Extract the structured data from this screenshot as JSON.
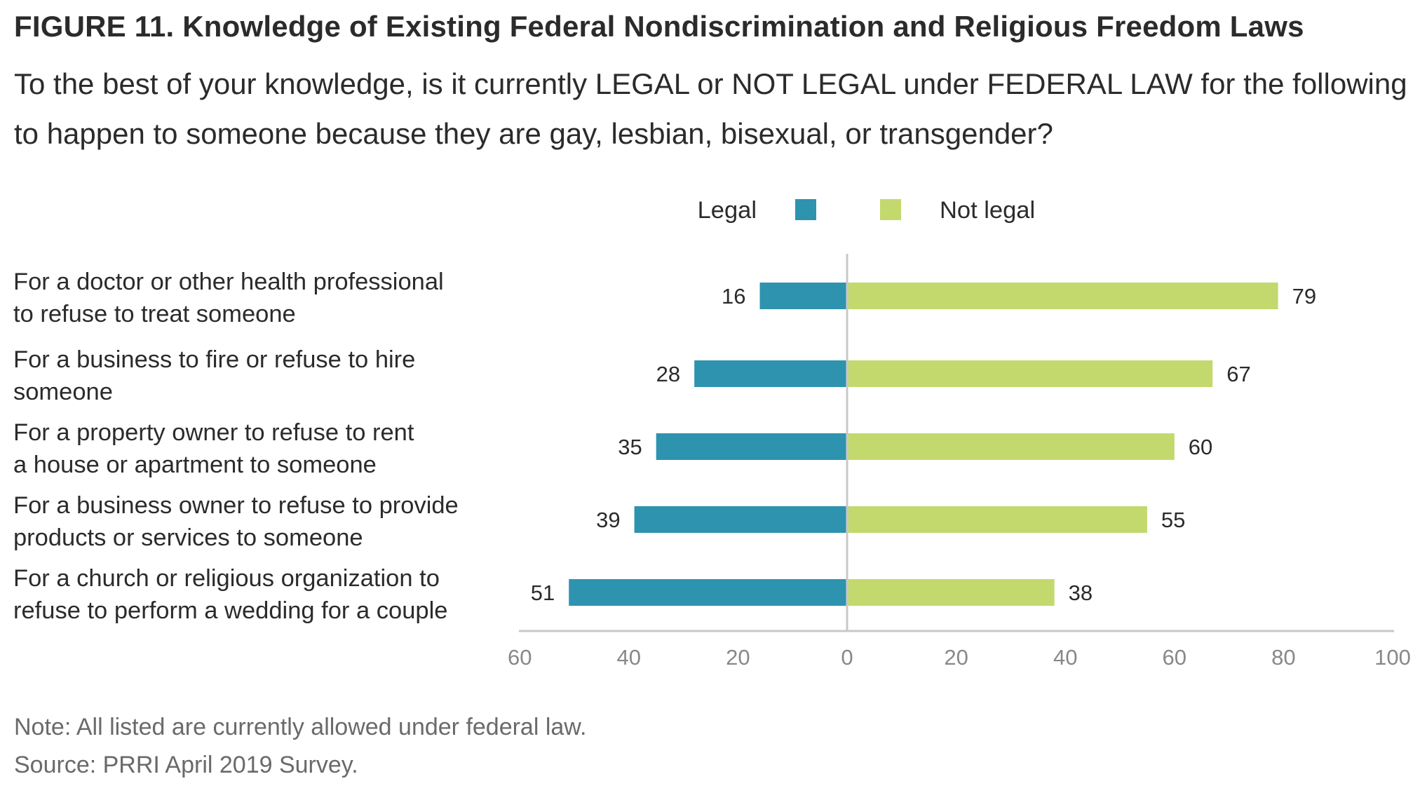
{
  "figure": {
    "title": "FIGURE 11.  Knowledge of Existing Federal Nondiscrimination and Religious Freedom Laws",
    "subtitle": "To the best of your knowledge, is it currently LEGAL or NOT LEGAL under FEDERAL LAW for the following to happen to someone because they are gay, lesbian, bisexual, or transgender?",
    "note": "Note: All listed are currently allowed under federal law.",
    "source": "Source: PRRI April 2019 Survey."
  },
  "chart_data": {
    "type": "bar",
    "orientation": "horizontal-diverging",
    "categories": [
      [
        "For a doctor or other health professional",
        "to refuse to treat someone"
      ],
      [
        "For a business to fire or refuse to hire",
        "someone"
      ],
      [
        "For a property owner to refuse to rent",
        "a house or apartment to someone"
      ],
      [
        "For a business owner to refuse to provide",
        "products or services to someone"
      ],
      [
        "For a church or religious organization to",
        "refuse to perform a wedding for a couple"
      ]
    ],
    "series": [
      {
        "name": "Legal",
        "color": "#2e93ae",
        "direction": "left",
        "values": [
          16,
          28,
          35,
          39,
          51
        ]
      },
      {
        "name": "Not legal",
        "color": "#c3d96e",
        "direction": "right",
        "values": [
          79,
          67,
          60,
          55,
          38
        ]
      }
    ],
    "xlim": [
      -60,
      100
    ],
    "xticks": [
      -60,
      -40,
      -20,
      0,
      20,
      40,
      60,
      80,
      100
    ],
    "xtick_labels": [
      "60",
      "40",
      "20",
      "0",
      "20",
      "40",
      "60",
      "80",
      "100"
    ],
    "legend_position": "top",
    "grid": false
  }
}
